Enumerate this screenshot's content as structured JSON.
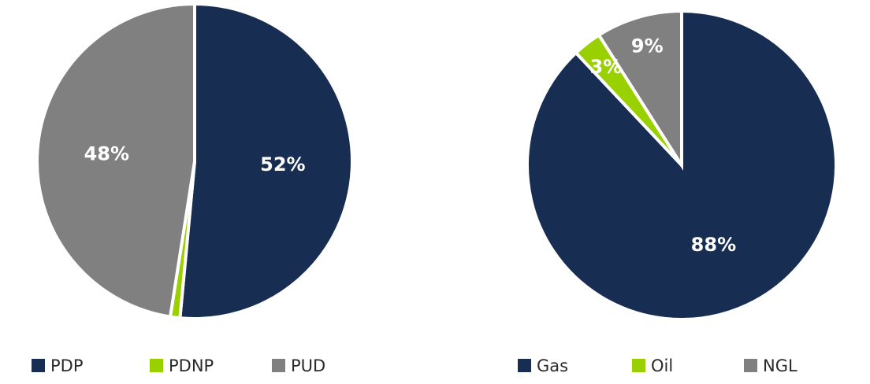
{
  "chart_data": [
    {
      "type": "pie",
      "categories": [
        "PDP",
        "PDNP",
        "PUD"
      ],
      "values": [
        52,
        1,
        48
      ],
      "value_labels": [
        "52%",
        null,
        "48%"
      ],
      "colors": [
        "#172d52",
        "#99d100",
        "#808080"
      ],
      "legend": "bottom"
    },
    {
      "type": "pie",
      "categories": [
        "Gas",
        "Oil",
        "NGL"
      ],
      "values": [
        88,
        3,
        9
      ],
      "value_labels": [
        "88%",
        "3%",
        "9%"
      ],
      "colors": [
        "#172d52",
        "#99d100",
        "#808080"
      ],
      "legend": "bottom"
    }
  ]
}
